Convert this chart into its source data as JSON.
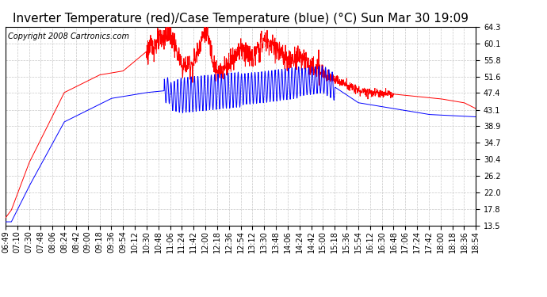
{
  "title": "Inverter Temperature (red)/Case Temperature (blue) (°C) Sun Mar 30 19:09",
  "copyright": "Copyright 2008 Cartronics.com",
  "yticks": [
    13.5,
    17.8,
    22.0,
    26.2,
    30.4,
    34.7,
    38.9,
    43.1,
    47.4,
    51.6,
    55.8,
    60.1,
    64.3
  ],
  "ylim": [
    13.5,
    64.3
  ],
  "xtick_labels": [
    "06:49",
    "07:10",
    "07:30",
    "07:48",
    "08:06",
    "08:24",
    "08:42",
    "09:00",
    "09:18",
    "09:36",
    "09:54",
    "10:12",
    "10:30",
    "10:48",
    "11:06",
    "11:24",
    "11:42",
    "12:00",
    "12:18",
    "12:36",
    "12:54",
    "13:12",
    "13:30",
    "13:48",
    "14:06",
    "14:24",
    "14:42",
    "15:00",
    "15:18",
    "15:36",
    "15:54",
    "16:12",
    "16:30",
    "16:48",
    "17:06",
    "17:24",
    "17:42",
    "18:00",
    "18:18",
    "18:36",
    "18:54"
  ],
  "red_color": "#ff0000",
  "blue_color": "#0000ff",
  "bg_color": "#ffffff",
  "grid_color": "#c8c8c8",
  "title_fontsize": 11,
  "copyright_fontsize": 7,
  "tick_fontsize": 7
}
